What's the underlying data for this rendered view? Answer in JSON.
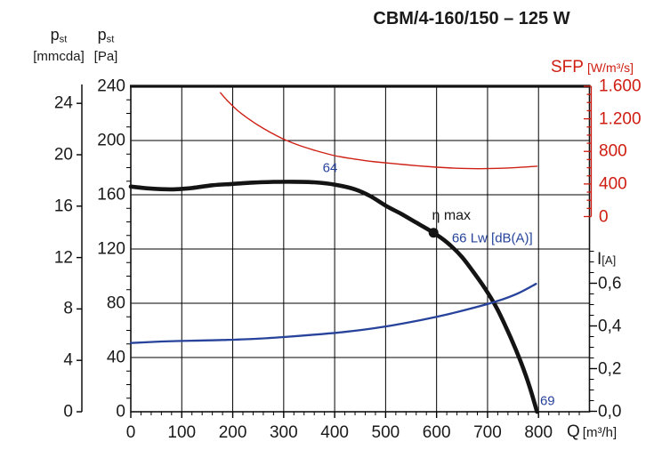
{
  "title": "CBM/4-160/150 – 125 W",
  "chart_data": {
    "type": "line",
    "title": "CBM/4-160/150 – 125 W",
    "grid": true,
    "axes": {
      "x": {
        "label": "Q",
        "unit": "[m³/h]",
        "min": 0,
        "max": 900,
        "major_step": 100,
        "minor_step": 20,
        "tick_labels": [
          "0",
          "100",
          "200",
          "300",
          "400",
          "500",
          "600",
          "700",
          "800"
        ],
        "tick_values": [
          0,
          100,
          200,
          300,
          400,
          500,
          600,
          700,
          800
        ]
      },
      "pressure_pa": {
        "symbol": "p",
        "sub": "st",
        "unit": "[Pa]",
        "min": 0,
        "max": 240,
        "major_step": 40,
        "minor_step": 10,
        "tick_labels": [
          "240",
          "200",
          "160",
          "120",
          "80",
          "40",
          "0"
        ],
        "tick_values": [
          240,
          200,
          160,
          120,
          80,
          40,
          0
        ]
      },
      "pressure_mmcda": {
        "symbol": "p",
        "sub": "st",
        "unit": "[mmcda]",
        "major_step": 4,
        "tick_labels": [
          "24",
          "20",
          "16",
          "12",
          "8",
          "4",
          "0"
        ],
        "tick_values": [
          24,
          20,
          16,
          12,
          8,
          4,
          0
        ]
      },
      "sfp": {
        "label": "SFP",
        "unit": "[W/m³/s]",
        "color": "#cf1d11",
        "min": 0,
        "max": 1600,
        "major_step": 400,
        "minor_step": 100,
        "tick_labels": [
          "1.600",
          "1.200",
          "800",
          "400",
          "0"
        ],
        "tick_values": [
          1600,
          1200,
          800,
          400,
          0
        ]
      },
      "current": {
        "symbol": "I",
        "sub": "[A]",
        "min": 0,
        "major_step": 0.2,
        "minor_step": 0.05,
        "minor_top": 0.775,
        "tick_labels": [
          "0,6",
          "0,4",
          "0,2",
          "0,0"
        ],
        "tick_values": [
          0.6,
          0.4,
          0.2,
          0.0
        ]
      }
    },
    "series": [
      {
        "id": "pressure-curve",
        "name": "static pressure p_st [Pa]",
        "axis": "pressure_pa",
        "color": "#141414",
        "width": 4.6,
        "points": [
          [
            0,
            166
          ],
          [
            40,
            164.5
          ],
          [
            80,
            164
          ],
          [
            120,
            165
          ],
          [
            160,
            167
          ],
          [
            200,
            168
          ],
          [
            240,
            169
          ],
          [
            280,
            169.5
          ],
          [
            320,
            169.6
          ],
          [
            360,
            169.2
          ],
          [
            400,
            167.5
          ],
          [
            440,
            164
          ],
          [
            470,
            159
          ],
          [
            500,
            152
          ],
          [
            530,
            146
          ],
          [
            560,
            139.5
          ],
          [
            594,
            132
          ],
          [
            620,
            125
          ],
          [
            650,
            114
          ],
          [
            680,
            99
          ],
          [
            700,
            88
          ],
          [
            720,
            75
          ],
          [
            745,
            55
          ],
          [
            765,
            37
          ],
          [
            782,
            19
          ],
          [
            797,
            0
          ]
        ]
      },
      {
        "id": "sfp-curve",
        "name": "SFP [W/m³/s]",
        "axis": "sfp",
        "color": "#cf2015",
        "width": 1.4,
        "points": [
          [
            176,
            1520
          ],
          [
            190,
            1420
          ],
          [
            210,
            1300
          ],
          [
            230,
            1205
          ],
          [
            250,
            1120
          ],
          [
            275,
            1030
          ],
          [
            300,
            950
          ],
          [
            330,
            875
          ],
          [
            360,
            815
          ],
          [
            400,
            748
          ],
          [
            440,
            705
          ],
          [
            480,
            672
          ],
          [
            520,
            648
          ],
          [
            560,
            625
          ],
          [
            600,
            606
          ],
          [
            640,
            593
          ],
          [
            680,
            588
          ],
          [
            720,
            592
          ],
          [
            760,
            603
          ],
          [
            797,
            618
          ]
        ]
      },
      {
        "id": "current-curve",
        "name": "current I [A]",
        "axis": "current",
        "color": "#27439b",
        "width": 2.3,
        "points": [
          [
            0,
            0.32
          ],
          [
            60,
            0.327
          ],
          [
            120,
            0.331
          ],
          [
            180,
            0.334
          ],
          [
            240,
            0.339
          ],
          [
            300,
            0.348
          ],
          [
            360,
            0.359
          ],
          [
            420,
            0.372
          ],
          [
            480,
            0.39
          ],
          [
            540,
            0.414
          ],
          [
            600,
            0.443
          ],
          [
            660,
            0.477
          ],
          [
            720,
            0.517
          ],
          [
            760,
            0.553
          ],
          [
            795,
            0.597
          ]
        ]
      }
    ],
    "marker": {
      "label": "η max",
      "q": 594,
      "pa": 132,
      "radius": 5.5,
      "color": "#141414"
    },
    "annotations": [
      {
        "id": "label-64",
        "text": "64",
        "color": "#27439b",
        "q": 391,
        "pa": 180,
        "align": "center",
        "size": 15
      },
      {
        "id": "label-eta-max",
        "text": "η max",
        "color": "#1a1a1a",
        "q": 629,
        "pa": 144,
        "align": "center",
        "size": 16
      },
      {
        "id": "label-66-lw",
        "text": "66 Lw [dB(A)]",
        "color": "#27439b",
        "q": 630,
        "pa": 128,
        "align": "left",
        "size": 15
      },
      {
        "id": "label-69",
        "text": "69",
        "color": "#27439b",
        "q": 803,
        "pa": 8,
        "align": "left",
        "size": 15
      }
    ]
  }
}
